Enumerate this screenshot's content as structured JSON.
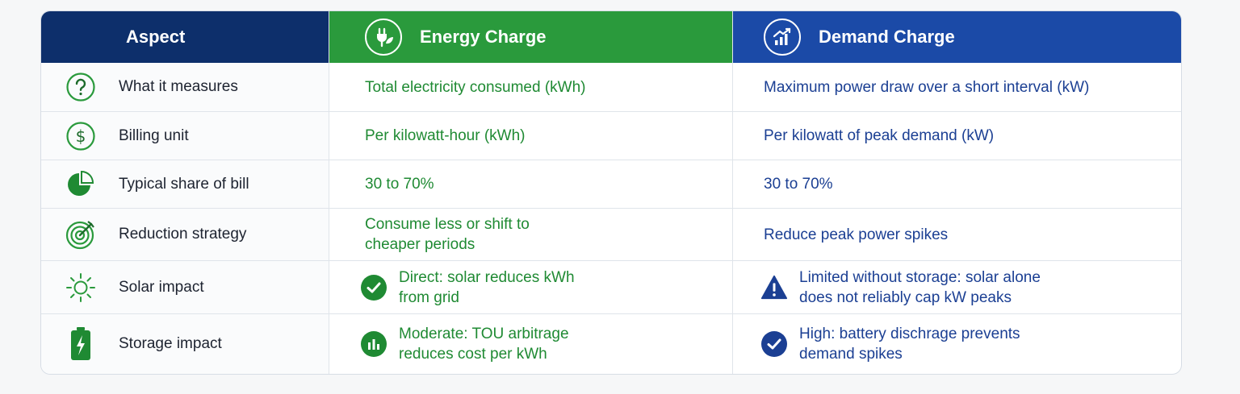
{
  "header": {
    "aspect": "Aspect",
    "energy": "Energy Charge",
    "demand": "Demand Charge"
  },
  "colors": {
    "navy": "#0d2f6b",
    "green": "#2a9a3c",
    "blue": "#1b4aa7"
  },
  "rows": [
    {
      "icon": "question-circle-icon",
      "aspect": "What it measures",
      "energy": "Total electricity consumed (kWh)",
      "demand": "Maximum power draw over a short interval (kW)"
    },
    {
      "icon": "dollar-circle-icon",
      "aspect": "Billing unit",
      "energy": "Per kilowatt-hour (kWh)",
      "demand": "Per kilowatt of peak demand (kW)"
    },
    {
      "icon": "pie-chart-icon",
      "aspect": "Typical share of bill",
      "energy": "30 to 70%",
      "demand": "30 to 70%"
    },
    {
      "icon": "target-icon",
      "aspect": "Reduction strategy",
      "energy_line1": "Consume less or shift to",
      "energy_line2": "cheaper periods",
      "demand": "Reduce peak power spikes"
    },
    {
      "icon": "sun-icon",
      "aspect": "Solar impact",
      "energy_icon": "check-circle-icon",
      "energy_line1": "Direct: solar reduces kWh",
      "energy_line2": "from grid",
      "demand_icon": "warning-triangle-icon",
      "demand_line1": "Limited without storage: solar alone",
      "demand_line2": "does not reliably cap kW peaks"
    },
    {
      "icon": "battery-icon",
      "aspect": "Storage impact",
      "energy_icon": "bar-chart-circle-icon",
      "energy_line1": "Moderate: TOU arbitrage",
      "energy_line2": "reduces cost per kWh",
      "demand_icon": "check-circle-icon",
      "demand_line1": "High: battery dischrage prevents",
      "demand_line2": "demand spikes"
    }
  ]
}
